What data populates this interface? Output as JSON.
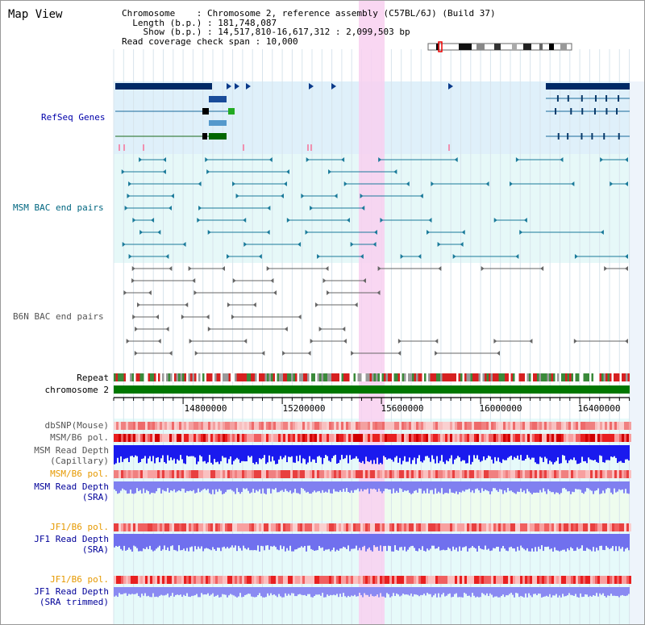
{
  "view_title": "Map View",
  "info": {
    "chromosome_label": "Chromosome",
    "chromosome_value": "Chromosome 2, reference assembly (C57BL/6J) (Build 37)",
    "length_label": "Length (b.p.)",
    "length_value": "181,748,087",
    "show_label": "Show (b.p.)",
    "show_value": "14,517,810-16,617,312 : 2,099,503 bp",
    "coverage_label": "Read coverage check span",
    "coverage_value": "10,000"
  },
  "tracks": {
    "refseq": "RefSeq Genes",
    "msm_bac": "MSM BAC end pairs",
    "b6n_bac": "B6N BAC end pairs",
    "repeat": "Repeat",
    "chromosome": "chromosome 2",
    "dbsnp": "dbSNP(Mouse)",
    "msm_b6_pol_1": "MSM/B6 pol.",
    "msm_rd_cap_1": "MSM Read Depth",
    "msm_rd_cap_2": "(Capillary)",
    "msm_b6_pol_2": "MSM/B6 pol.",
    "msm_rd_sra_1": "MSM Read Depth",
    "msm_rd_sra_2": "(SRA)",
    "jf1_b6_pol_1": "JF1/B6 pol.",
    "jf1_rd_sra_1": "JF1 Read Depth",
    "jf1_rd_sra_2": "(SRA)",
    "jf1_b6_pol_2": "JF1/B6 pol.",
    "jf1_rd_trim_1": "JF1 Read Depth",
    "jf1_rd_trim_2": "(SRA trimmed)"
  },
  "axis": {
    "ticks": [
      "14800000",
      "15200000",
      "15600000",
      "16000000",
      "16400000"
    ]
  },
  "colors": {
    "refseq_label": "#0000aa",
    "msm_label": "#006680",
    "b6n_label": "#555555",
    "orange_label": "#e69900",
    "blue_label": "#000099",
    "highlight": "#f8d0f0",
    "chromosome_bar": "#007700"
  }
}
